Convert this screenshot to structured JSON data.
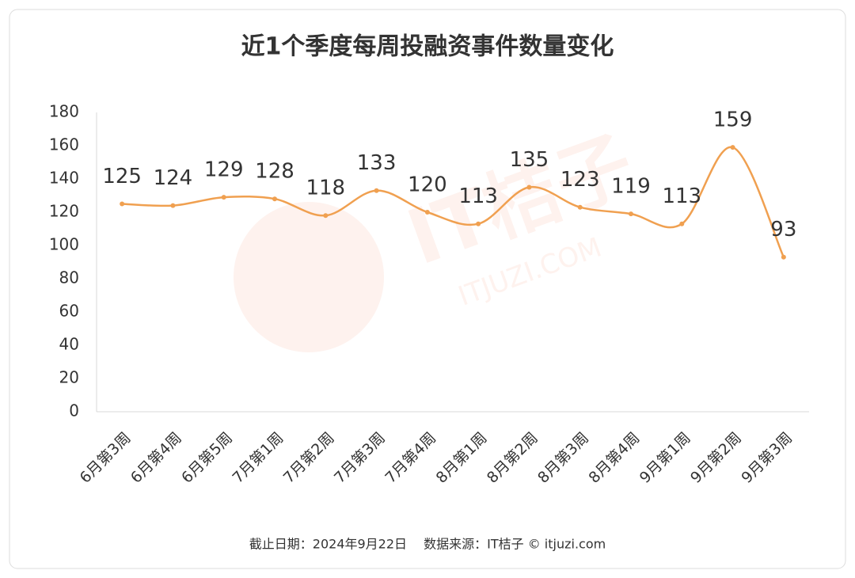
{
  "chart_data": {
    "type": "line",
    "title": "近1个季度每周投融资事件数量变化",
    "categories": [
      "6月第3周",
      "6月第4周",
      "6月第5周",
      "7月第1周",
      "7月第2周",
      "7月第3周",
      "7月第4周",
      "8月第1周",
      "8月第2周",
      "8月第3周",
      "8月第4周",
      "9月第1周",
      "9月第2周",
      "9月第3周"
    ],
    "values": [
      125,
      124,
      129,
      128,
      118,
      133,
      120,
      113,
      135,
      123,
      119,
      113,
      159,
      93
    ],
    "color": "#f0a050",
    "ylim": [
      0,
      180
    ],
    "yticks": [
      0,
      20,
      40,
      60,
      80,
      100,
      120,
      140,
      160,
      180
    ],
    "grid": false,
    "smooth": true,
    "source": "截止日期：2024年9月22日　 数据来源：IT桔子 © itjuzi.com",
    "watermark": [
      "IT桔子",
      "ITJUZI.COM"
    ]
  }
}
